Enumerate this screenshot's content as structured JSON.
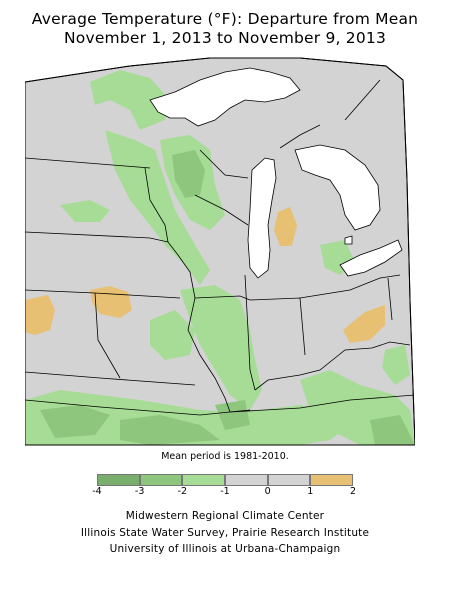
{
  "title": {
    "line1": "Average Temperature (°F): Departure from Mean",
    "line2": "November 1, 2013 to November 9, 2013"
  },
  "map": {
    "region": "Midwest US",
    "colors": {
      "lake": "#ffffff",
      "background": "#d3d3d3",
      "minus1_to_0": "#d3d3d3",
      "minus2_to_minus1": "#a6dc96",
      "minus3_to_minus2": "#8ec67e",
      "minus4_to_minus3": "#7aae6c",
      "zero_to_1": "#d3d3d3",
      "one_to_2": "#e8c074"
    }
  },
  "mean_note": "Mean period is 1981-2010.",
  "legend": {
    "bins": [
      {
        "from": -4,
        "to": -3,
        "color": "#7aae6c"
      },
      {
        "from": -3,
        "to": -2,
        "color": "#8ec67e"
      },
      {
        "from": -2,
        "to": -1,
        "color": "#a6dc96"
      },
      {
        "from": -1,
        "to": 0,
        "color": "#d3d3d3"
      },
      {
        "from": 0,
        "to": 1,
        "color": "#d3d3d3"
      },
      {
        "from": 1,
        "to": 2,
        "color": "#e8c074"
      }
    ],
    "ticks": [
      "-4",
      "-3",
      "-2",
      "-1",
      "0",
      "1",
      "2"
    ]
  },
  "credits": {
    "line1": "Midwestern Regional Climate Center",
    "line2": "Illinois State Water Survey, Prairie Research Institute",
    "line3": "University of Illinois at Urbana-Champaign"
  }
}
